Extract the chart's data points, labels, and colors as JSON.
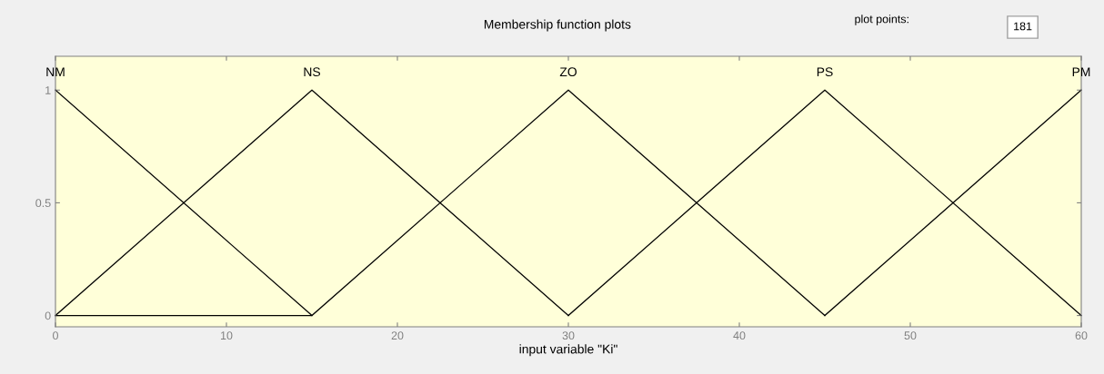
{
  "chart_data": {
    "type": "line",
    "title": "Membership function plots",
    "xlabel": "input variable \"Ki\"",
    "xlim": [
      0,
      60
    ],
    "xticks": [
      0,
      10,
      20,
      30,
      40,
      50,
      60
    ],
    "ylim": [
      -0.05,
      1.15
    ],
    "yticks": [
      0,
      0.5,
      1
    ],
    "grid": false,
    "legend": false,
    "marker": "none",
    "line_style": "solid",
    "annotations": [
      "plot points:",
      "181"
    ],
    "series": [
      {
        "name": "NM",
        "color": "#000000",
        "x": [
          0,
          15,
          0
        ],
        "values": [
          1,
          0,
          0
        ]
      },
      {
        "name": "NS",
        "color": "#000000",
        "x": [
          0,
          15,
          30
        ],
        "values": [
          0,
          1,
          0
        ]
      },
      {
        "name": "ZO",
        "color": "#000000",
        "x": [
          15,
          30,
          45
        ],
        "values": [
          0,
          1,
          0
        ]
      },
      {
        "name": "PS",
        "color": "#000000",
        "x": [
          30,
          45,
          60
        ],
        "values": [
          0,
          1,
          0
        ]
      },
      {
        "name": "PM",
        "color": "#000000",
        "x": [
          45,
          60
        ],
        "values": [
          0,
          1
        ]
      }
    ]
  }
}
